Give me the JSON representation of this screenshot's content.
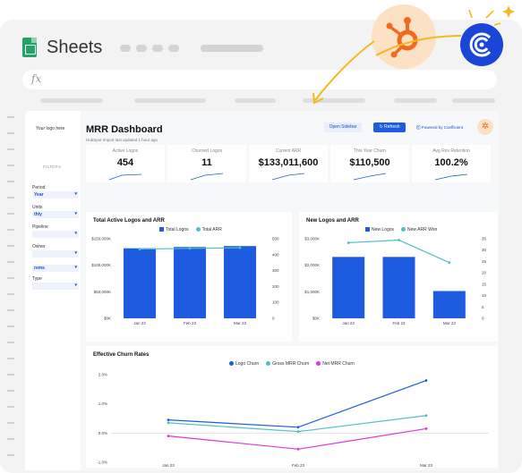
{
  "app": {
    "title": "Sheets",
    "formula_symbol": "fx"
  },
  "sidebar": {
    "logo_text": "Your logo here",
    "filters_label": "FILTERS",
    "filters": [
      {
        "label": "Period",
        "value": "Year"
      },
      {
        "label": "Units",
        "value": "thly"
      },
      {
        "label": "Pipeline",
        "value": ""
      },
      {
        "label": "Owner",
        "value": ""
      },
      {
        "label": "",
        "value": "rems"
      },
      {
        "label": "Type",
        "value": ""
      }
    ]
  },
  "header": {
    "title": "MRR Dashboard",
    "subtitle": "HubSpot Import last updated 1 hour ago",
    "open_sidebar": "Open Sidebar",
    "refresh": "Refresh",
    "powered_by": "Powered by Coefficient"
  },
  "kpis": [
    {
      "label": "Active Logos",
      "value": "454"
    },
    {
      "label": "Churned Logos",
      "value": "11"
    },
    {
      "label": "Current ARR",
      "value": "$133,011,600"
    },
    {
      "label": "This Year Churn",
      "value": "$110,500"
    },
    {
      "label": "Avg Rev Retention",
      "value": "100.2%"
    }
  ],
  "colors": {
    "primary_blue": "#1d5be0",
    "teal": "#4fbfc4",
    "magenta": "#e037d9",
    "hubspot_orange": "#f26a21",
    "coefficient_blue": "#1a46d8",
    "arrow_yellow": "#f4b91e"
  },
  "icons": [
    "sheets-logo-icon",
    "hubspot-icon",
    "coefficient-icon",
    "refresh-icon",
    "sparkle-icon"
  ],
  "chart_data": [
    {
      "type": "bar",
      "title": "Total Active Logos and ARR",
      "categories": [
        "Jan 23",
        "Feb 23",
        "Mar 23"
      ],
      "series": [
        {
          "name": "Total Logos",
          "type": "bar",
          "axis": "right",
          "values": [
            440,
            448,
            454
          ]
        },
        {
          "name": "Total ARR",
          "type": "line",
          "axis": "left",
          "values": [
            130500000,
            131800000,
            133011600
          ]
        }
      ],
      "y_left_ticks": [
        "$150,000K",
        "$100,000K",
        "$50,000K",
        "$0K"
      ],
      "y_right_ticks": [
        "500",
        "400",
        "300",
        "200",
        "100",
        "0"
      ],
      "ylim_left": [
        0,
        150000000
      ],
      "ylim_right": [
        0,
        500
      ]
    },
    {
      "type": "bar",
      "title": "New Logos and ARR",
      "categories": [
        "Jan 23",
        "Feb 23",
        "Mar 23"
      ],
      "series": [
        {
          "name": "New Logos",
          "type": "bar",
          "axis": "right",
          "values": [
            27,
            27,
            12
          ]
        },
        {
          "name": "New ARR Won",
          "type": "line",
          "axis": "left",
          "values": [
            2850000,
            2950000,
            2100000
          ]
        }
      ],
      "y_left_ticks": [
        "$3,000K",
        "$2,000K",
        "$1,000K",
        "$0K"
      ],
      "y_right_ticks": [
        "35",
        "30",
        "25",
        "20",
        "15",
        "10",
        "5",
        "0"
      ],
      "ylim_left": [
        0,
        3000000
      ],
      "ylim_right": [
        0,
        35
      ]
    },
    {
      "type": "line",
      "title": "Effective Churn Rates",
      "categories": [
        "Jan 23",
        "Feb 23",
        "Mar 23"
      ],
      "series": [
        {
          "name": "Logo Churn",
          "values": [
            0.45,
            0.2,
            1.8
          ]
        },
        {
          "name": "Gross MRR Churn",
          "values": [
            0.35,
            0.05,
            0.6
          ]
        },
        {
          "name": "Net MRR Churn",
          "values": [
            -0.1,
            -0.55,
            0.15
          ]
        }
      ],
      "y_ticks": [
        "2.0%",
        "1.0%",
        "0.0%",
        "-1.0%"
      ],
      "ylim": [
        -1.0,
        2.0
      ]
    }
  ]
}
